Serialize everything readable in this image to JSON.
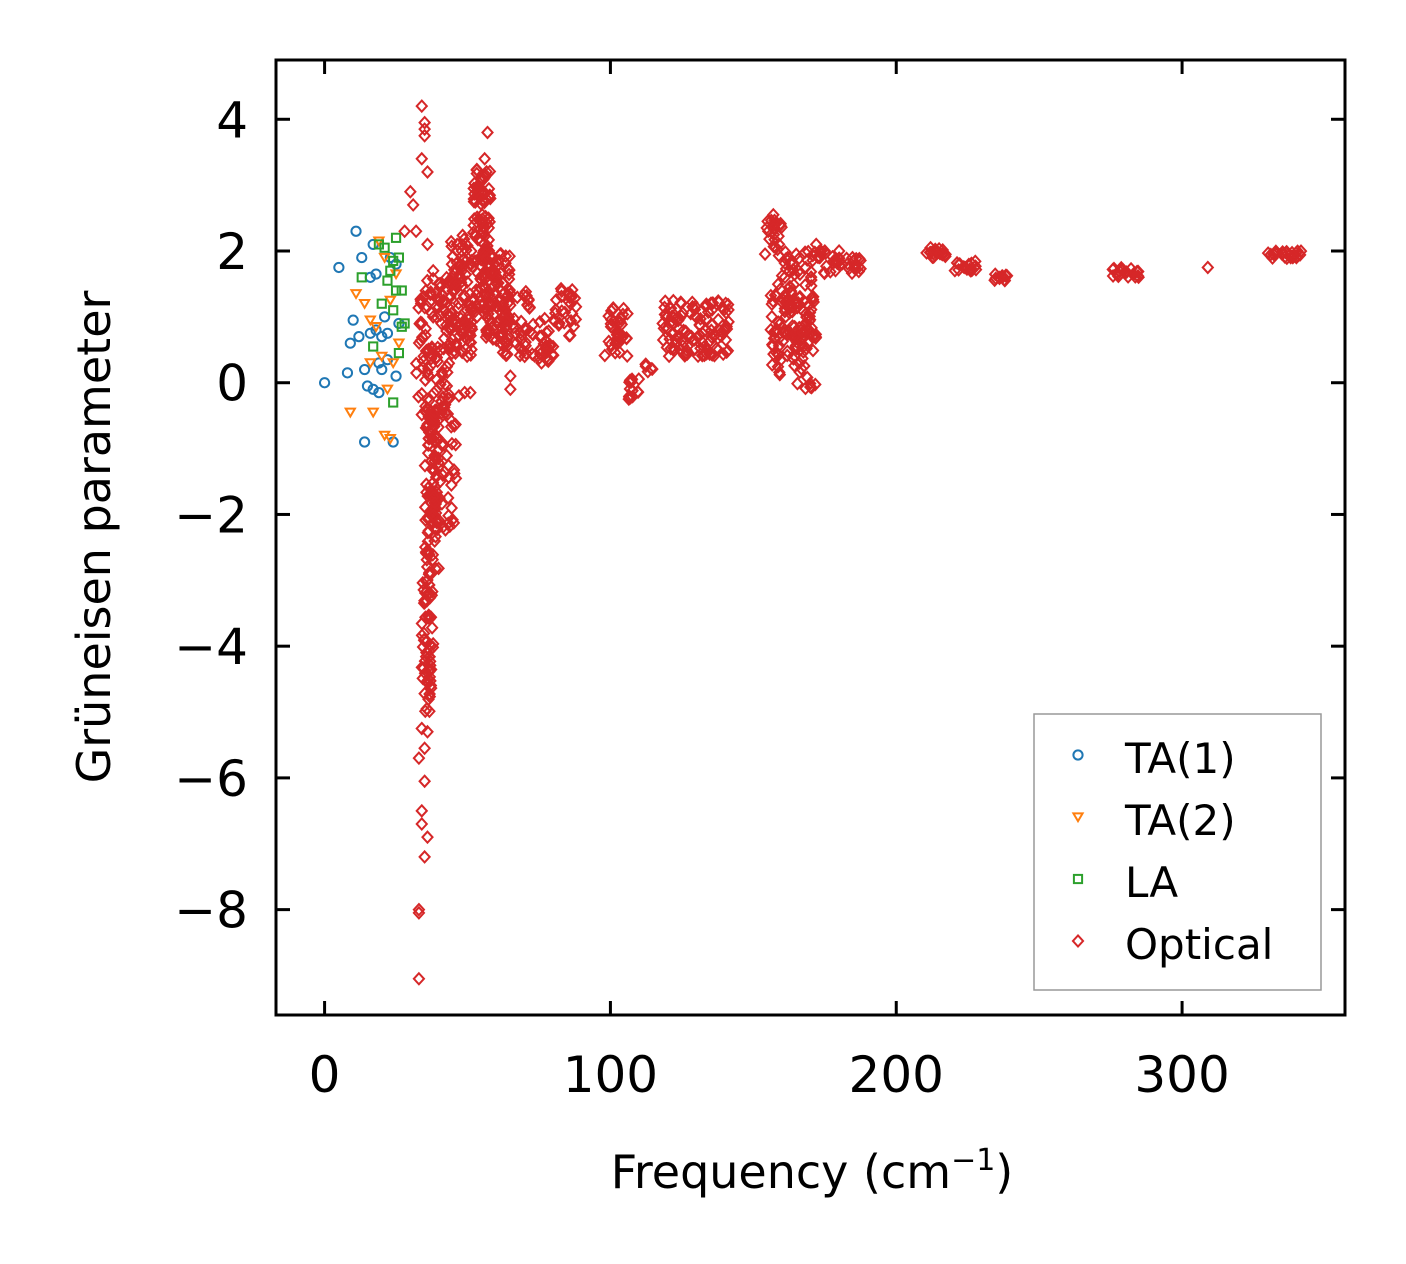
{
  "chart_data": {
    "type": "scatter",
    "title": "",
    "xlabel": "Frequency (cm",
    "xlabel_sup": "−1",
    "xlabel_suffix": ")",
    "ylabel": "Grüneisen parameter",
    "xlim": [
      -17,
      357
    ],
    "ylim": [
      -9.6,
      4.9
    ],
    "xticks": [
      0,
      100,
      200,
      300
    ],
    "xtick_labels": [
      "0",
      "100",
      "200",
      "300"
    ],
    "yticks": [
      4,
      2,
      0,
      -2,
      -4,
      -6,
      -8
    ],
    "ytick_labels": [
      "4",
      "2",
      "0",
      "−2",
      "−4",
      "−6",
      "−8"
    ],
    "legend_position": "bottom-right",
    "series": [
      {
        "name": "TA(1)",
        "marker": "circle",
        "color": "#1f77b4",
        "points": [
          [
            0,
            0
          ],
          [
            5,
            1.75
          ],
          [
            8,
            0.15
          ],
          [
            9,
            0.6
          ],
          [
            10,
            0.95
          ],
          [
            11,
            2.3
          ],
          [
            12,
            0.7
          ],
          [
            13,
            1.9
          ],
          [
            14,
            -0.9
          ],
          [
            14,
            0.2
          ],
          [
            15,
            -0.05
          ],
          [
            16,
            0.75
          ],
          [
            16,
            1.6
          ],
          [
            17,
            2.1
          ],
          [
            17,
            -0.1
          ],
          [
            18,
            0.8
          ],
          [
            18,
            1.65
          ],
          [
            19,
            0.3
          ],
          [
            19,
            -0.15
          ],
          [
            20,
            0.2
          ],
          [
            20,
            0.7
          ],
          [
            21,
            1.0
          ],
          [
            22,
            0.35
          ],
          [
            22,
            0.75
          ],
          [
            23,
            1.9
          ],
          [
            24,
            -0.9
          ],
          [
            25,
            1.8
          ],
          [
            25,
            0.1
          ],
          [
            26,
            0.9
          ]
        ]
      },
      {
        "name": "TA(2)",
        "marker": "triangle-down",
        "color": "#ff7f0e",
        "points": [
          [
            9,
            -0.45
          ],
          [
            11,
            1.35
          ],
          [
            14,
            1.2
          ],
          [
            16,
            0.95
          ],
          [
            16,
            0.3
          ],
          [
            17,
            -0.45
          ],
          [
            18,
            0.85
          ],
          [
            19,
            2.15
          ],
          [
            20,
            0.4
          ],
          [
            21,
            1.9
          ],
          [
            21,
            -0.8
          ],
          [
            22,
            -0.1
          ],
          [
            23,
            -0.85
          ],
          [
            23,
            1.25
          ],
          [
            24,
            0.3
          ],
          [
            25,
            1.65
          ],
          [
            26,
            0.6
          ]
        ]
      },
      {
        "name": "LA",
        "marker": "square",
        "color": "#2ca02c",
        "points": [
          [
            13,
            1.6
          ],
          [
            17,
            0.55
          ],
          [
            19,
            2.1
          ],
          [
            20,
            1.2
          ],
          [
            21,
            2.05
          ],
          [
            22,
            1.55
          ],
          [
            23,
            1.7
          ],
          [
            24,
            1.85
          ],
          [
            24,
            -0.3
          ],
          [
            25,
            2.2
          ],
          [
            25,
            1.4
          ],
          [
            26,
            0.45
          ],
          [
            26,
            1.9
          ],
          [
            27,
            1.4
          ],
          [
            27,
            0.85
          ],
          [
            28,
            0.9
          ],
          [
            24,
            1.1
          ]
        ]
      },
      {
        "name": "Optical",
        "marker": "diamond",
        "color": "#d62728",
        "points": [
          [
            34,
            4.2
          ],
          [
            35,
            3.95
          ],
          [
            35,
            3.85
          ],
          [
            35,
            3.75
          ],
          [
            36,
            3.2
          ],
          [
            34,
            3.4
          ],
          [
            30,
            2.9
          ],
          [
            31,
            2.7
          ],
          [
            32,
            2.3
          ],
          [
            33,
            -9.05
          ],
          [
            33,
            -8.0
          ],
          [
            33,
            -8.05
          ],
          [
            35,
            -7.2
          ],
          [
            36,
            -6.9
          ],
          [
            34,
            -6.7
          ],
          [
            34,
            -6.5
          ],
          [
            35,
            -6.05
          ],
          [
            33,
            -5.7
          ],
          [
            35,
            -5.55
          ],
          [
            36,
            -5.3
          ],
          [
            34,
            -5.25
          ],
          [
            57,
            3.8
          ],
          [
            56,
            3.4
          ],
          [
            55,
            3.1
          ],
          [
            54,
            2.9
          ],
          [
            28,
            2.3
          ],
          [
            36,
            2.1
          ],
          [
            38,
            1.7
          ],
          [
            40,
            1.5
          ],
          [
            42,
            1.1
          ],
          [
            44,
            0.8
          ],
          [
            46,
            0.6
          ],
          [
            47,
            -0.2
          ],
          [
            49,
            -0.15
          ],
          [
            51,
            -0.15
          ],
          [
            65,
            -0.1
          ],
          [
            65,
            0.1
          ],
          [
            67,
            0.6
          ],
          [
            70,
            0.4
          ],
          [
            120,
            1.0
          ],
          [
            122,
            0.75
          ],
          [
            155,
            2.45
          ],
          [
            157,
            2.55
          ],
          [
            159,
            2.1
          ],
          [
            162,
            1.9
          ],
          [
            165,
            1.95
          ],
          [
            172,
            2.1
          ],
          [
            175,
            2.0
          ],
          [
            180,
            2.0
          ],
          [
            185,
            1.85
          ],
          [
            212,
            2.05
          ],
          [
            214,
            2.0
          ],
          [
            216,
            1.95
          ],
          [
            222,
            1.8
          ],
          [
            224,
            1.75
          ],
          [
            226,
            1.7
          ],
          [
            236,
            1.6
          ],
          [
            238,
            1.55
          ],
          [
            278,
            1.7
          ],
          [
            280,
            1.68
          ],
          [
            283,
            1.65
          ],
          [
            309,
            1.75
          ],
          [
            332,
            1.95
          ],
          [
            335,
            1.95
          ],
          [
            338,
            1.9
          ],
          [
            340,
            1.9
          ]
        ],
        "clusters": [
          {
            "x": [
              34,
              38
            ],
            "y": [
              -5.0,
              -2.9
            ],
            "n": 70
          },
          {
            "x": [
              35,
              40
            ],
            "y": [
              -2.9,
              -0.4
            ],
            "n": 90
          },
          {
            "x": [
              38,
              46
            ],
            "y": [
              -2.3,
              -0.2
            ],
            "n": 50
          },
          {
            "x": [
              32,
              44
            ],
            "y": [
              -0.5,
              1.6
            ],
            "n": 110
          },
          {
            "x": [
              44,
              52
            ],
            "y": [
              0.4,
              2.3
            ],
            "n": 100
          },
          {
            "x": [
              52,
              58
            ],
            "y": [
              1.0,
              3.3
            ],
            "n": 100
          },
          {
            "x": [
              56,
              65
            ],
            "y": [
              0.6,
              2.0
            ],
            "n": 90
          },
          {
            "x": [
              62,
              72
            ],
            "y": [
              0.4,
              1.4
            ],
            "n": 50
          },
          {
            "x": [
              72,
              80
            ],
            "y": [
              0.3,
              1.0
            ],
            "n": 30
          },
          {
            "x": [
              80,
              88
            ],
            "y": [
              0.7,
              1.5
            ],
            "n": 30
          },
          {
            "x": [
              98,
              106
            ],
            "y": [
              0.4,
              1.2
            ],
            "n": 35
          },
          {
            "x": [
              106,
              110
            ],
            "y": [
              -0.25,
              0.1
            ],
            "n": 15
          },
          {
            "x": [
              112,
              115
            ],
            "y": [
              0.15,
              0.3
            ],
            "n": 6
          },
          {
            "x": [
              118,
              142
            ],
            "y": [
              0.4,
              1.25
            ],
            "n": 120
          },
          {
            "x": [
              154,
              160
            ],
            "y": [
              1.9,
              2.5
            ],
            "n": 20
          },
          {
            "x": [
              156,
              162
            ],
            "y": [
              0.1,
              1.5
            ],
            "n": 45
          },
          {
            "x": [
              162,
              172
            ],
            "y": [
              0.6,
              1.6
            ],
            "n": 50
          },
          {
            "x": [
              164,
              172
            ],
            "y": [
              -0.1,
              0.9
            ],
            "n": 40
          },
          {
            "x": [
              160,
              178
            ],
            "y": [
              1.6,
              2.0
            ],
            "n": 35
          },
          {
            "x": [
              178,
              188
            ],
            "y": [
              1.65,
              1.9
            ],
            "n": 25
          },
          {
            "x": [
              210,
              218
            ],
            "y": [
              1.9,
              2.05
            ],
            "n": 15
          },
          {
            "x": [
              220,
              228
            ],
            "y": [
              1.7,
              1.85
            ],
            "n": 15
          },
          {
            "x": [
              234,
              239
            ],
            "y": [
              1.55,
              1.65
            ],
            "n": 10
          },
          {
            "x": [
              275,
              285
            ],
            "y": [
              1.6,
              1.75
            ],
            "n": 18
          },
          {
            "x": [
              330,
              342
            ],
            "y": [
              1.88,
              2.0
            ],
            "n": 20
          }
        ]
      }
    ]
  }
}
